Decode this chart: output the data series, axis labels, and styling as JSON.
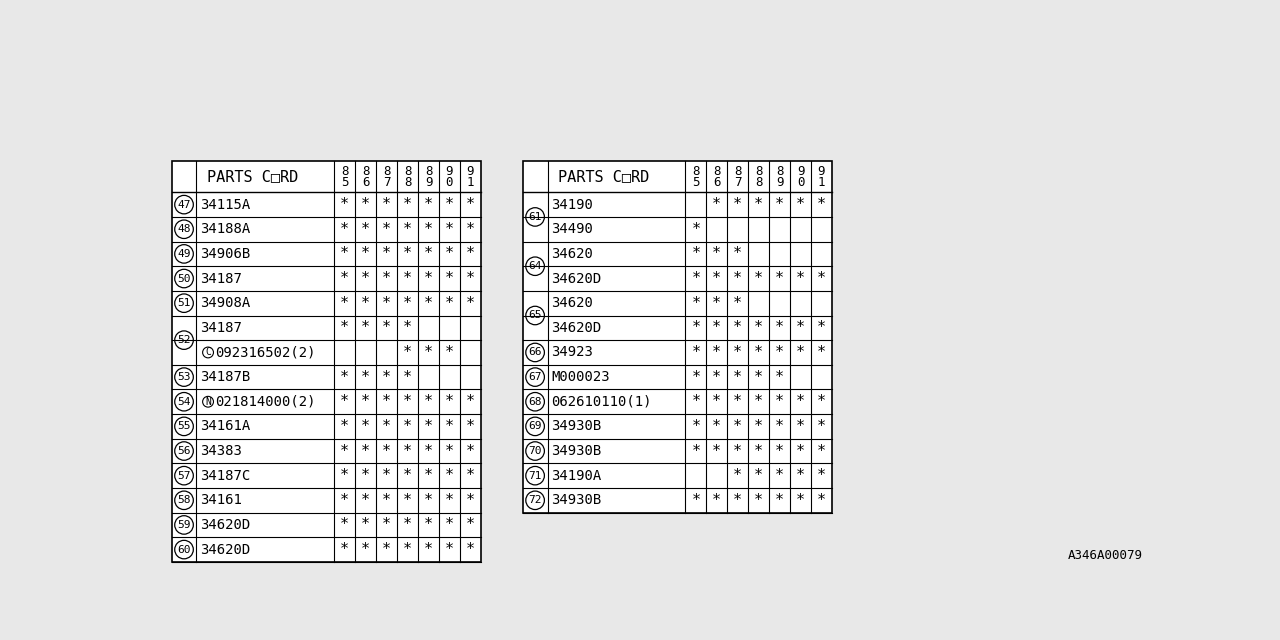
{
  "bg_color": "#e8e8e8",
  "table_bg": "#ffffff",
  "border_color": "#000000",
  "text_color": "#000000",
  "header_fontsize": 11,
  "code_fontsize": 10,
  "num_fontsize": 8,
  "year_fontsize": 9,
  "star_fontsize": 11,
  "footnote": "A346A00079",
  "footnote_fontsize": 9,
  "left_table": {
    "header": "PARTS C□RD",
    "years": [
      "8\n5",
      "8\n6",
      "8\n7",
      "8\n8",
      "8\n9",
      "9\n0",
      "9\n1"
    ],
    "rows": [
      {
        "num": "47",
        "code": "34115A",
        "stars": [
          1,
          1,
          1,
          1,
          1,
          1,
          1
        ],
        "merged_num": false,
        "no_num": false,
        "circle_prefix": ""
      },
      {
        "num": "48",
        "code": "34188A",
        "stars": [
          1,
          1,
          1,
          1,
          1,
          1,
          1
        ],
        "merged_num": false,
        "no_num": false,
        "circle_prefix": ""
      },
      {
        "num": "49",
        "code": "34906B",
        "stars": [
          1,
          1,
          1,
          1,
          1,
          1,
          1
        ],
        "merged_num": false,
        "no_num": false,
        "circle_prefix": ""
      },
      {
        "num": "50",
        "code": "34187",
        "stars": [
          1,
          1,
          1,
          1,
          1,
          1,
          1
        ],
        "merged_num": false,
        "no_num": false,
        "circle_prefix": ""
      },
      {
        "num": "51",
        "code": "34908A",
        "stars": [
          1,
          1,
          1,
          1,
          1,
          1,
          1
        ],
        "merged_num": false,
        "no_num": false,
        "circle_prefix": ""
      },
      {
        "num": "52",
        "code": "34187",
        "stars": [
          1,
          1,
          1,
          1,
          0,
          0,
          0
        ],
        "merged_num": true,
        "no_num": false,
        "circle_prefix": ""
      },
      {
        "num": "52",
        "code": "092316502(2)",
        "stars": [
          0,
          0,
          0,
          1,
          1,
          1,
          0
        ],
        "merged_num": true,
        "no_num": true,
        "circle_prefix": "C"
      },
      {
        "num": "53",
        "code": "34187B",
        "stars": [
          1,
          1,
          1,
          1,
          0,
          0,
          0
        ],
        "merged_num": false,
        "no_num": false,
        "circle_prefix": ""
      },
      {
        "num": "54",
        "code": "021814000(2)",
        "stars": [
          1,
          1,
          1,
          1,
          1,
          1,
          1
        ],
        "merged_num": false,
        "no_num": false,
        "circle_prefix": "N"
      },
      {
        "num": "55",
        "code": "34161A",
        "stars": [
          1,
          1,
          1,
          1,
          1,
          1,
          1
        ],
        "merged_num": false,
        "no_num": false,
        "circle_prefix": ""
      },
      {
        "num": "56",
        "code": "34383",
        "stars": [
          1,
          1,
          1,
          1,
          1,
          1,
          1
        ],
        "merged_num": false,
        "no_num": false,
        "circle_prefix": ""
      },
      {
        "num": "57",
        "code": "34187C",
        "stars": [
          1,
          1,
          1,
          1,
          1,
          1,
          1
        ],
        "merged_num": false,
        "no_num": false,
        "circle_prefix": ""
      },
      {
        "num": "58",
        "code": "34161",
        "stars": [
          1,
          1,
          1,
          1,
          1,
          1,
          1
        ],
        "merged_num": false,
        "no_num": false,
        "circle_prefix": ""
      },
      {
        "num": "59",
        "code": "34620D",
        "stars": [
          1,
          1,
          1,
          1,
          1,
          1,
          1
        ],
        "merged_num": false,
        "no_num": false,
        "circle_prefix": ""
      },
      {
        "num": "60",
        "code": "34620D",
        "stars": [
          1,
          1,
          1,
          1,
          1,
          1,
          1
        ],
        "merged_num": false,
        "no_num": false,
        "circle_prefix": ""
      }
    ]
  },
  "right_table": {
    "header": "PARTS C□RD",
    "years": [
      "8\n5",
      "8\n6",
      "8\n7",
      "8\n8",
      "8\n9",
      "9\n0",
      "9\n1"
    ],
    "rows": [
      {
        "num": "61",
        "code": "34190",
        "stars": [
          0,
          1,
          1,
          1,
          1,
          1,
          1
        ],
        "merged_num": true,
        "no_num": false,
        "circle_prefix": ""
      },
      {
        "num": "61",
        "code": "34490",
        "stars": [
          1,
          0,
          0,
          0,
          0,
          0,
          0
        ],
        "merged_num": true,
        "no_num": true,
        "circle_prefix": ""
      },
      {
        "num": "64",
        "code": "34620",
        "stars": [
          1,
          1,
          1,
          0,
          0,
          0,
          0
        ],
        "merged_num": true,
        "no_num": false,
        "circle_prefix": ""
      },
      {
        "num": "64",
        "code": "34620D",
        "stars": [
          1,
          1,
          1,
          1,
          1,
          1,
          1
        ],
        "merged_num": true,
        "no_num": true,
        "circle_prefix": ""
      },
      {
        "num": "65",
        "code": "34620",
        "stars": [
          1,
          1,
          1,
          0,
          0,
          0,
          0
        ],
        "merged_num": true,
        "no_num": false,
        "circle_prefix": ""
      },
      {
        "num": "65",
        "code": "34620D",
        "stars": [
          1,
          1,
          1,
          1,
          1,
          1,
          1
        ],
        "merged_num": true,
        "no_num": true,
        "circle_prefix": ""
      },
      {
        "num": "66",
        "code": "34923",
        "stars": [
          1,
          1,
          1,
          1,
          1,
          1,
          1
        ],
        "merged_num": false,
        "no_num": false,
        "circle_prefix": ""
      },
      {
        "num": "67",
        "code": "M000023",
        "stars": [
          1,
          1,
          1,
          1,
          1,
          0,
          0
        ],
        "merged_num": false,
        "no_num": false,
        "circle_prefix": ""
      },
      {
        "num": "68",
        "code": "062610110(1)",
        "stars": [
          1,
          1,
          1,
          1,
          1,
          1,
          1
        ],
        "merged_num": false,
        "no_num": false,
        "circle_prefix": ""
      },
      {
        "num": "69",
        "code": "34930B",
        "stars": [
          1,
          1,
          1,
          1,
          1,
          1,
          1
        ],
        "merged_num": false,
        "no_num": false,
        "circle_prefix": ""
      },
      {
        "num": "70",
        "code": "34930B",
        "stars": [
          1,
          1,
          1,
          1,
          1,
          1,
          1
        ],
        "merged_num": false,
        "no_num": false,
        "circle_prefix": ""
      },
      {
        "num": "71",
        "code": "34190A",
        "stars": [
          0,
          0,
          1,
          1,
          1,
          1,
          1
        ],
        "merged_num": false,
        "no_num": false,
        "circle_prefix": ""
      },
      {
        "num": "72",
        "code": "34930B",
        "stars": [
          1,
          1,
          1,
          1,
          1,
          1,
          1
        ],
        "merged_num": false,
        "no_num": false,
        "circle_prefix": ""
      }
    ]
  }
}
